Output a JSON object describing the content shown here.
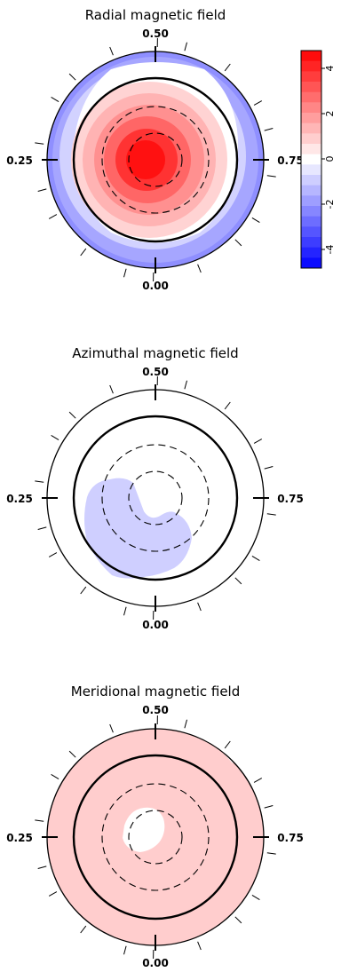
{
  "figure": {
    "panels": [
      {
        "title": "Radial magnetic field",
        "phase_labels": {
          "top": "0.50",
          "bottom": "0.00",
          "left": "0.25",
          "right": "0.75"
        }
      },
      {
        "title": "Azimuthal magnetic field",
        "phase_labels": {
          "top": "0.50",
          "bottom": "0.00",
          "left": "0.25",
          "right": "0.75"
        }
      },
      {
        "title": "Meridional magnetic field",
        "phase_labels": {
          "top": "0.50",
          "bottom": "0.00",
          "left": "0.25",
          "right": "0.75"
        }
      }
    ],
    "colorbar": {
      "tick_labels": [
        "4",
        "2",
        "0",
        "-2",
        "-4"
      ],
      "tick_values": [
        4,
        2,
        0,
        -2,
        -4
      ]
    }
  },
  "chart_data": [
    {
      "type": "heatmap",
      "projection": "polar (flattened stellar pole view)",
      "title": "Radial magnetic field",
      "field": "radial",
      "colorscale": {
        "min": -5,
        "max": 5,
        "negative_color": "#0000ff",
        "positive_color": "#ff0000",
        "zero_color": "#ffffff",
        "levels": 21
      },
      "latitude_circles_deg": [
        0,
        30,
        60
      ],
      "rotation_phases": [
        0.0,
        0.25,
        0.5,
        0.75
      ],
      "features": [
        {
          "kind": "positive polar spot",
          "peak_value": 5,
          "latitude_deg": 70,
          "phase": 0.62
        },
        {
          "kind": "negative ring",
          "value": -2,
          "latitude_range_deg": [
            -30,
            10
          ]
        }
      ]
    },
    {
      "type": "heatmap",
      "projection": "polar (flattened stellar pole view)",
      "title": "Azimuthal magnetic field",
      "field": "azimuthal",
      "colorscale": {
        "min": -5,
        "max": 5,
        "negative_color": "#0000ff",
        "positive_color": "#ff0000",
        "zero_color": "#ffffff",
        "levels": 21
      },
      "latitude_circles_deg": [
        0,
        30,
        60
      ],
      "rotation_phases": [
        0.0,
        0.25,
        0.5,
        0.75
      ],
      "features": [
        {
          "kind": "weak negative region",
          "value": -1,
          "phase_range": [
            0.05,
            0.35
          ],
          "latitude_range_deg": [
            -10,
            60
          ]
        }
      ]
    },
    {
      "type": "heatmap",
      "projection": "polar (flattened stellar pole view)",
      "title": "Meridional magnetic field",
      "field": "meridional",
      "colorscale": {
        "min": -5,
        "max": 5,
        "negative_color": "#0000ff",
        "positive_color": "#ff0000",
        "zero_color": "#ffffff",
        "levels": 21
      },
      "latitude_circles_deg": [
        0,
        30,
        60
      ],
      "rotation_phases": [
        0.0,
        0.25,
        0.5,
        0.75
      ],
      "features": [
        {
          "kind": "weak positive background",
          "value": 1
        },
        {
          "kind": "near-zero polar cap",
          "value": 0,
          "latitude_deg": 75
        }
      ]
    }
  ]
}
